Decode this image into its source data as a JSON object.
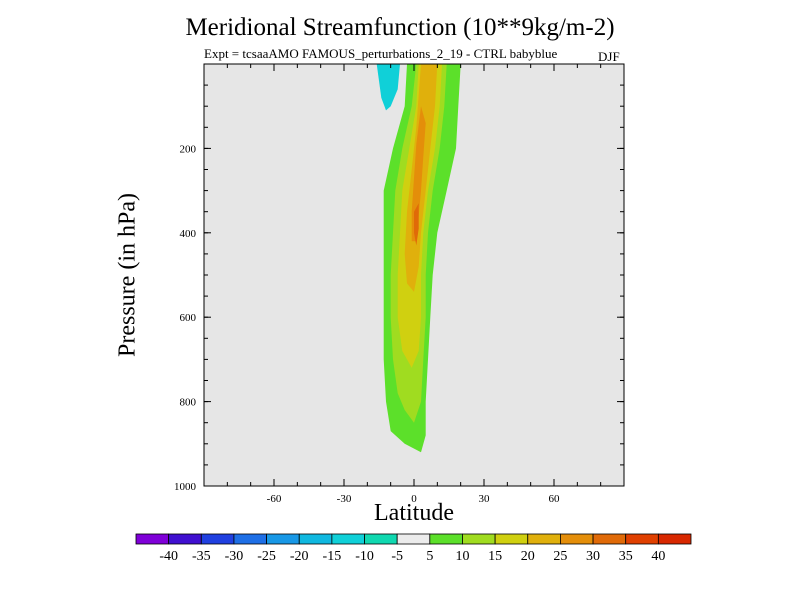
{
  "chart_data": {
    "type": "heatmap",
    "title": "Meridional Streamfunction (10**9kg/m-2)",
    "subtitle": "Expt = tcsaaAMO FAMOUS_perturbations_2_19 - CTRL babyblue",
    "season": "DJF",
    "xlabel": "Latitude",
    "ylabel": "Pressure (in hPa)",
    "xlim": [
      -90,
      90
    ],
    "ylim": [
      1000,
      0
    ],
    "x_ticks": [
      -60,
      -30,
      0,
      30,
      60
    ],
    "x_tick_labels": [
      "-60",
      "-30",
      "0",
      "30",
      "60"
    ],
    "y_ticks": [
      200,
      400,
      600,
      800,
      1000
    ],
    "y_tick_labels": [
      "200",
      "400",
      "600",
      "800",
      "1000"
    ],
    "background_color": "#e6e6e6",
    "colorbar": {
      "levels": [
        -40,
        -35,
        -30,
        -25,
        -20,
        -15,
        -10,
        -5,
        5,
        10,
        15,
        20,
        25,
        30,
        35,
        40
      ],
      "labels": [
        "-40",
        "-35",
        "-30",
        "-25",
        "-20",
        "-15",
        "-10",
        "-5",
        "5",
        "10",
        "15",
        "20",
        "25",
        "30",
        "35",
        "40"
      ],
      "colors": [
        "#7f00d8",
        "#4010d0",
        "#2040e0",
        "#1e6fe6",
        "#1898e6",
        "#10b8e0",
        "#10d0d8",
        "#10d8b0",
        "#ececec",
        "#5ce02a",
        "#a0dc20",
        "#d0d010",
        "#e0b00c",
        "#e48e0a",
        "#e06a08",
        "#e04000",
        "#d82800"
      ]
    },
    "contours": [
      {
        "level": 5,
        "color": "#5ce02a",
        "points": [
          [
            7,
            0
          ],
          [
            20,
            0
          ],
          [
            19,
            100
          ],
          [
            18,
            200
          ],
          [
            14,
            300
          ],
          [
            10,
            400
          ],
          [
            8,
            500
          ],
          [
            7,
            600
          ],
          [
            6,
            700
          ],
          [
            5,
            800
          ],
          [
            5,
            880
          ],
          [
            3,
            920
          ],
          [
            -4,
            900
          ],
          [
            -10,
            870
          ],
          [
            -12,
            800
          ],
          [
            -13,
            700
          ],
          [
            -13,
            600
          ],
          [
            -13,
            500
          ],
          [
            -13,
            400
          ],
          [
            -13,
            300
          ],
          [
            -9,
            200
          ],
          [
            -4,
            100
          ],
          [
            -3,
            0
          ]
        ]
      },
      {
        "level": 10,
        "color": "#a0dc20",
        "points": [
          [
            1,
            0
          ],
          [
            14,
            0
          ],
          [
            13,
            100
          ],
          [
            11,
            200
          ],
          [
            8,
            300
          ],
          [
            6,
            400
          ],
          [
            5,
            500
          ],
          [
            5,
            600
          ],
          [
            4,
            700
          ],
          [
            3,
            800
          ],
          [
            0,
            850
          ],
          [
            -4,
            820
          ],
          [
            -7,
            780
          ],
          [
            -9,
            700
          ],
          [
            -10,
            600
          ],
          [
            -10,
            500
          ],
          [
            -9,
            400
          ],
          [
            -8,
            300
          ],
          [
            -5,
            200
          ],
          [
            -1,
            100
          ]
        ]
      },
      {
        "level": 15,
        "color": "#d0d010",
        "points": [
          [
            2,
            0
          ],
          [
            12,
            0
          ],
          [
            11,
            100
          ],
          [
            9,
            200
          ],
          [
            6,
            300
          ],
          [
            4,
            400
          ],
          [
            3,
            500
          ],
          [
            3,
            600
          ],
          [
            2,
            680
          ],
          [
            -1,
            720
          ],
          [
            -5,
            680
          ],
          [
            -7,
            600
          ],
          [
            -7,
            500
          ],
          [
            -6,
            400
          ],
          [
            -5,
            300
          ],
          [
            -2,
            200
          ],
          [
            1,
            100
          ]
        ]
      },
      {
        "level": 20,
        "color": "#e0b00c",
        "points": [
          [
            3,
            0
          ],
          [
            10,
            0
          ],
          [
            9,
            100
          ],
          [
            7,
            200
          ],
          [
            5,
            300
          ],
          [
            3,
            400
          ],
          [
            2,
            480
          ],
          [
            0,
            540
          ],
          [
            -3,
            520
          ],
          [
            -4,
            450
          ],
          [
            -3,
            350
          ],
          [
            -1,
            250
          ],
          [
            1,
            150
          ]
        ]
      },
      {
        "level": 25,
        "color": "#e48e0a",
        "points": [
          [
            3,
            100
          ],
          [
            5,
            140
          ],
          [
            4,
            220
          ],
          [
            3,
            300
          ],
          [
            2,
            360
          ],
          [
            1,
            420
          ],
          [
            -1,
            420
          ],
          [
            -1,
            350
          ],
          [
            0,
            270
          ],
          [
            1,
            190
          ]
        ]
      },
      {
        "level": 30,
        "color": "#e06a08",
        "points": [
          [
            2,
            330
          ],
          [
            2,
            390
          ],
          [
            1,
            430
          ],
          [
            0,
            400
          ],
          [
            0,
            350
          ]
        ]
      },
      {
        "level": -10,
        "color": "#10d0d8",
        "points": [
          [
            -16,
            0
          ],
          [
            -6,
            0
          ],
          [
            -7,
            60
          ],
          [
            -10,
            100
          ],
          [
            -12,
            110
          ],
          [
            -14,
            80
          ],
          [
            -15,
            40
          ]
        ]
      }
    ]
  }
}
